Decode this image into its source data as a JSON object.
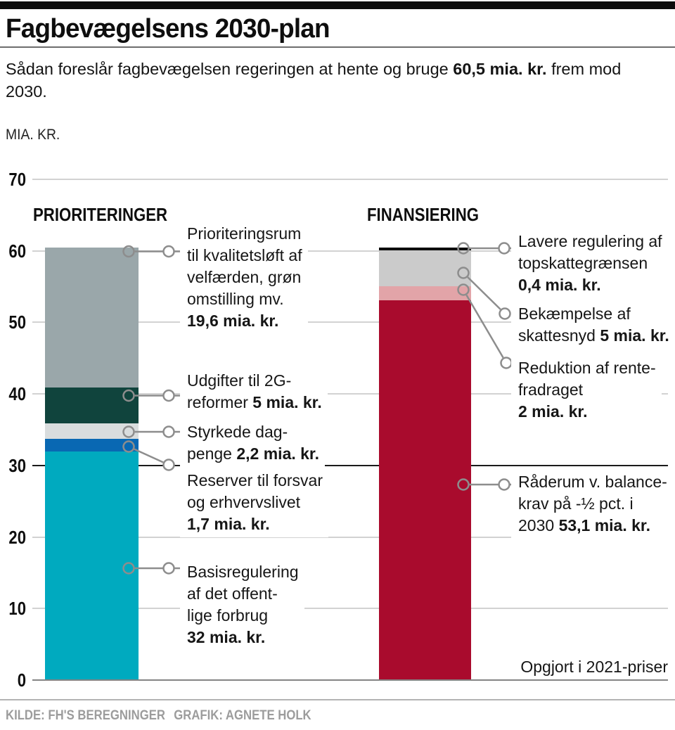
{
  "header": {
    "title": "Fagbevægelsens 2030-plan",
    "subtitle": {
      "pre": "Sådan foreslår fagbevægelsen regeringen at hente og bruge ",
      "bold": "60,5 mia. kr.",
      "post_line1": " frem mod",
      "post_line2": "2030."
    },
    "unit_label": "MIA. KR."
  },
  "footer": {
    "note": "Opgjort i 2021-priser",
    "source": "KILDE: FH'S BEREGNINGER",
    "credit": "GRAFIK: AGNETE HOLK"
  },
  "chart_data": {
    "type": "bar",
    "stacked": true,
    "unit": "mia. kr.",
    "value_axis_label": "MIA. KR.",
    "ylim": [
      0,
      70
    ],
    "yticks": [
      0,
      10,
      20,
      30,
      40,
      50,
      60,
      70
    ],
    "grid": true,
    "emphasized_gridline": 30,
    "total_label": "60,5 mia. kr.",
    "bars": [
      {
        "category": "PRIORITERINGER",
        "total": 60.5,
        "segments": [
          {
            "id": "basisregulering",
            "label": "Basisregulering af det offentlige forbrug",
            "value": 32,
            "value_label": "32 mia. kr.",
            "color": "#00aabf"
          },
          {
            "id": "reserver",
            "label": "Reserver til forsvar og erhvervslivet",
            "value": 1.7,
            "value_label": "1,7 mia. kr.",
            "color": "#0968b3"
          },
          {
            "id": "dagpenge",
            "label": "Styrkede dagpenge",
            "value": 2.2,
            "value_label": "2,2 mia. kr.",
            "color": "#d9ddde"
          },
          {
            "id": "2g-reformer",
            "label": "Udgifter til 2G-reformer",
            "value": 5,
            "value_label": "5 mia. kr.",
            "color": "#10443d"
          },
          {
            "id": "prioriteringsrum",
            "label": "Prioriteringsrum til kvalitetsløft af velfærden, grøn omstilling mv.",
            "value": 19.6,
            "value_label": "19,6 mia. kr.",
            "color": "#9aa7aa"
          }
        ]
      },
      {
        "category": "FINANSIERING",
        "total": 60.5,
        "segments": [
          {
            "id": "raaderum",
            "label": "Råderum v. balancekrav på -½ pct. i 2030",
            "value": 53.1,
            "value_label": "53,1 mia. kr.",
            "color": "#a90b2d"
          },
          {
            "id": "rentefradrag",
            "label": "Reduktion af rentefradraget",
            "value": 2,
            "value_label": "2 mia. kr.",
            "color": "#e2a4a8"
          },
          {
            "id": "skattesnyd",
            "label": "Bekæmpelse af skattesnyd",
            "value": 5,
            "value_label": "5 mia. kr.",
            "color": "#cbcbcb"
          },
          {
            "id": "topskat",
            "label": "Lavere regulering af topskattegrænsen",
            "value": 0.4,
            "value_label": "0,4 mia. kr.",
            "color": "#0d0d0d"
          }
        ]
      }
    ],
    "callouts": [
      {
        "id": "prioriteringsrum",
        "lines": [
          {
            "r": "Prioriteringsrum"
          },
          {
            "r": "til kvalitetsløft af"
          },
          {
            "r": "velfærden, grøn"
          },
          {
            "r": "omstilling mv."
          },
          {
            "b": "19,6 mia. kr."
          }
        ]
      },
      {
        "id": "2g-reformer",
        "lines": [
          {
            "r": "Udgifter til 2G-"
          },
          {
            "r": "reformer ",
            "b": "5 mia. kr."
          }
        ]
      },
      {
        "id": "dagpenge",
        "lines": [
          {
            "r": "Styrkede dag-"
          },
          {
            "r": "penge ",
            "b": "2,2 mia. kr."
          }
        ]
      },
      {
        "id": "reserver",
        "lines": [
          {
            "r": "Reserver til forsvar"
          },
          {
            "r": "og erhvervslivet"
          },
          {
            "b": "1,7 mia. kr."
          }
        ]
      },
      {
        "id": "basisregulering",
        "lines": [
          {
            "r": "Basisregulering"
          },
          {
            "r": "af det offent-"
          },
          {
            "r": "lige forbrug"
          },
          {
            "b": "32 mia. kr."
          }
        ]
      },
      {
        "id": "topskat",
        "lines": [
          {
            "r": "Lavere regulering af"
          },
          {
            "r": "topskattegrænsen"
          },
          {
            "b": "0,4 mia. kr."
          }
        ]
      },
      {
        "id": "skattesnyd",
        "lines": [
          {
            "r": "Bekæmpelse af"
          },
          {
            "r": "skattesnyd ",
            "b": "5 mia. kr."
          }
        ]
      },
      {
        "id": "rentefradrag",
        "lines": [
          {
            "r": "Reduktion af rente-"
          },
          {
            "r": "fradraget"
          },
          {
            "b": "2 mia. kr."
          }
        ]
      },
      {
        "id": "raaderum",
        "lines": [
          {
            "r": "Råderum v. balance-"
          },
          {
            "r": "krav på -½ pct. i"
          },
          {
            "r": "2030 ",
            "b": "53,1 mia. kr."
          }
        ]
      }
    ]
  }
}
